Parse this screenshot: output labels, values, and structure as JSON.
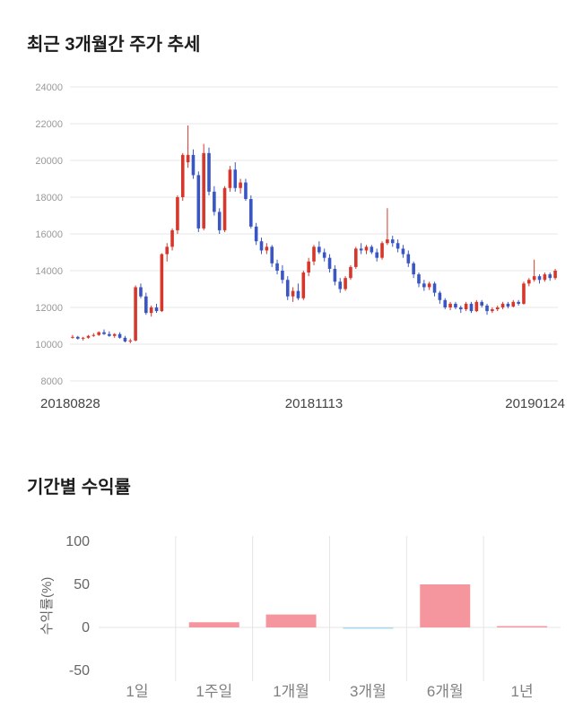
{
  "chart_data": [
    {
      "type": "candlestick",
      "title": "최근 3개월간 주가 추세",
      "ylim": [
        8000,
        24000
      ],
      "yticks": [
        8000,
        10000,
        12000,
        14000,
        16000,
        18000,
        20000,
        22000,
        24000
      ],
      "xticks": [
        "20180828",
        "20181113",
        "20190124"
      ],
      "up_color": "#d7372b",
      "down_color": "#3a56c4",
      "grid_color": "#e7e7e7",
      "candles": [
        [
          10350,
          10500,
          10300,
          10400
        ],
        [
          10400,
          10450,
          10250,
          10300
        ],
        [
          10300,
          10400,
          10200,
          10350
        ],
        [
          10350,
          10500,
          10300,
          10450
        ],
        [
          10450,
          10600,
          10400,
          10500
        ],
        [
          10500,
          10700,
          10450,
          10650
        ],
        [
          10650,
          10800,
          10500,
          10550
        ],
        [
          10550,
          10700,
          10400,
          10450
        ],
        [
          10450,
          10600,
          10350,
          10550
        ],
        [
          10550,
          10650,
          10300,
          10350
        ],
        [
          10350,
          10450,
          10100,
          10150
        ],
        [
          10150,
          10300,
          10050,
          10200
        ],
        [
          10200,
          13200,
          10150,
          13100
        ],
        [
          13100,
          13300,
          12500,
          12600
        ],
        [
          12600,
          12800,
          11600,
          11700
        ],
        [
          11700,
          12100,
          11500,
          12000
        ],
        [
          12000,
          12200,
          11700,
          11800
        ],
        [
          11800,
          14950,
          11750,
          14900
        ],
        [
          14900,
          15500,
          14500,
          15300
        ],
        [
          15300,
          16300,
          15100,
          16200
        ],
        [
          16200,
          18100,
          16000,
          18000
        ],
        [
          18000,
          20400,
          17800,
          20300
        ],
        [
          19900,
          21900,
          19600,
          20300
        ],
        [
          20300,
          20600,
          19000,
          19200
        ],
        [
          19200,
          19400,
          16100,
          16300
        ],
        [
          16300,
          20900,
          16200,
          20400
        ],
        [
          20400,
          20700,
          18100,
          18300
        ],
        [
          18300,
          18600,
          17000,
          17200
        ],
        [
          17200,
          17400,
          16000,
          16200
        ],
        [
          16200,
          18600,
          16100,
          18500
        ],
        [
          18500,
          19700,
          18300,
          19500
        ],
        [
          19500,
          19900,
          18300,
          18500
        ],
        [
          18500,
          19000,
          18200,
          18800
        ],
        [
          18800,
          19000,
          17800,
          17900
        ],
        [
          17900,
          18100,
          16300,
          16400
        ],
        [
          16400,
          16600,
          15400,
          15600
        ],
        [
          15600,
          15800,
          14900,
          15100
        ],
        [
          15100,
          15500,
          14900,
          15300
        ],
        [
          15300,
          15400,
          14200,
          14400
        ],
        [
          14400,
          14600,
          13800,
          14000
        ],
        [
          14000,
          14300,
          13300,
          13500
        ],
        [
          13500,
          13700,
          12400,
          12600
        ],
        [
          12600,
          13100,
          12300,
          12900
        ],
        [
          12900,
          13300,
          12400,
          12500
        ],
        [
          12500,
          14000,
          12400,
          13900
        ],
        [
          13900,
          14700,
          13700,
          14500
        ],
        [
          14500,
          15400,
          14300,
          15300
        ],
        [
          15300,
          15600,
          14900,
          15000
        ],
        [
          15000,
          15200,
          14500,
          14700
        ],
        [
          14700,
          14900,
          13900,
          14100
        ],
        [
          14100,
          14300,
          13200,
          13400
        ],
        [
          13400,
          13600,
          12800,
          13000
        ],
        [
          13000,
          13700,
          12900,
          13600
        ],
        [
          13600,
          14300,
          13500,
          14200
        ],
        [
          14200,
          15300,
          14100,
          15200
        ],
        [
          15200,
          15500,
          14900,
          15100
        ],
        [
          15100,
          15400,
          14900,
          15300
        ],
        [
          15300,
          15400,
          14900,
          15000
        ],
        [
          15000,
          15200,
          14500,
          14700
        ],
        [
          14700,
          15600,
          14600,
          15500
        ],
        [
          15500,
          17400,
          15400,
          15700
        ],
        [
          15700,
          15900,
          15300,
          15500
        ],
        [
          15500,
          15700,
          15000,
          15200
        ],
        [
          15200,
          15400,
          14700,
          14900
        ],
        [
          14900,
          15100,
          14200,
          14400
        ],
        [
          14400,
          14500,
          13600,
          13800
        ],
        [
          13800,
          13900,
          13100,
          13300
        ],
        [
          13300,
          13500,
          12900,
          13100
        ],
        [
          13100,
          13400,
          12950,
          13300
        ],
        [
          13300,
          13400,
          12600,
          12800
        ],
        [
          12800,
          12900,
          12200,
          12400
        ],
        [
          12400,
          12500,
          11900,
          12000
        ],
        [
          12000,
          12300,
          11850,
          12200
        ],
        [
          12200,
          12300,
          11900,
          12000
        ],
        [
          12000,
          12100,
          11700,
          11900
        ],
        [
          11900,
          12300,
          11800,
          12200
        ],
        [
          12200,
          12300,
          11700,
          11800
        ],
        [
          11800,
          12400,
          11750,
          12300
        ],
        [
          12300,
          12400,
          12000,
          12100
        ],
        [
          12100,
          12200,
          11600,
          11800
        ],
        [
          11800,
          12000,
          11700,
          11900
        ],
        [
          11900,
          12100,
          11800,
          12000
        ],
        [
          12000,
          12300,
          11900,
          12200
        ],
        [
          12200,
          12300,
          11950,
          12050
        ],
        [
          12050,
          12400,
          12000,
          12300
        ],
        [
          12300,
          12400,
          12100,
          12200
        ],
        [
          12200,
          13400,
          12150,
          13300
        ],
        [
          13300,
          13600,
          13150,
          13500
        ],
        [
          13500,
          14600,
          13400,
          13700
        ],
        [
          13700,
          13800,
          13300,
          13500
        ],
        [
          13500,
          13900,
          13400,
          13800
        ],
        [
          13800,
          13900,
          13450,
          13600
        ],
        [
          13600,
          14100,
          13500,
          14000
        ]
      ]
    },
    {
      "type": "bar",
      "title": "기간별 수익률",
      "ylabel": "수익률(%)",
      "categories": [
        "1일",
        "1주일",
        "1개월",
        "3개월",
        "6개월",
        "1년"
      ],
      "values": [
        0,
        6,
        15,
        -1.5,
        50,
        1.5
      ],
      "yticks": [
        100,
        50,
        0,
        -50
      ],
      "ylim": [
        -50,
        100
      ],
      "positive_color": "#f5959d",
      "negative_color": "#a6d9ec",
      "grid_color": "#e5e5e5",
      "tick_color": "#666666",
      "category_color": "#808080"
    }
  ]
}
